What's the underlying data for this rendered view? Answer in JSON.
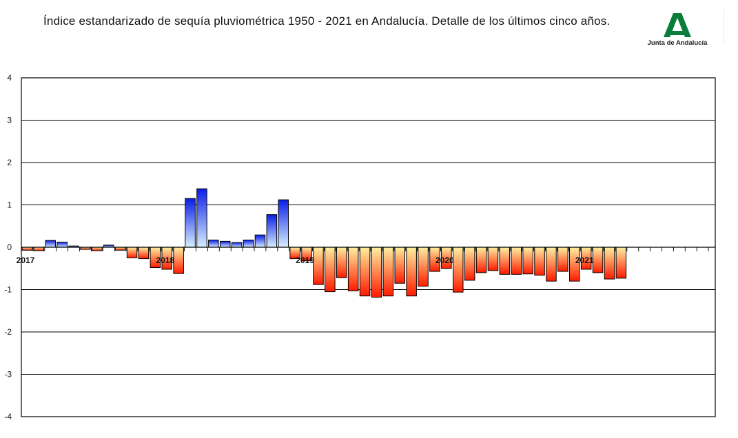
{
  "title": "Índice estandarizado de sequía pluviométrica 1950 - 2021 en Andalucía. Detalle de los últimos cinco años.",
  "logo": {
    "text": "Junta de Andalucía",
    "color": "#0a7d3b"
  },
  "colors": {
    "positive_top": "#0b1ee6",
    "positive_bottom": "#d7efff",
    "negative_top": "#fff0a0",
    "negative_bottom": "#ff1a00",
    "grid": "#000000"
  },
  "chart_data": {
    "type": "bar",
    "title": "Índice estandarizado de sequía pluviométrica 1950 - 2021 en Andalucía. Detalle de los últimos cinco años.",
    "xlabel": "",
    "ylabel": "",
    "ylim": [
      -4,
      4
    ],
    "yticks": [
      4,
      3,
      2,
      1,
      0,
      -1,
      -2,
      -3,
      -4
    ],
    "grid": true,
    "slots": 60,
    "year_labels": [
      {
        "label": "2017",
        "slot": 0
      },
      {
        "label": "2018",
        "slot": 12
      },
      {
        "label": "2019",
        "slot": 24
      },
      {
        "label": "2020",
        "slot": 36
      },
      {
        "label": "2021",
        "slot": 48
      }
    ],
    "values": [
      -0.07,
      -0.08,
      0.16,
      0.12,
      0.03,
      -0.05,
      -0.08,
      0.05,
      -0.07,
      -0.25,
      -0.27,
      -0.48,
      -0.52,
      -0.62,
      1.15,
      1.38,
      0.17,
      0.14,
      0.11,
      0.17,
      0.29,
      0.77,
      1.12,
      -0.27,
      -0.32,
      -0.88,
      -1.05,
      -0.72,
      -1.03,
      -1.15,
      -1.18,
      -1.15,
      -0.85,
      -1.15,
      -0.92,
      -0.57,
      -0.5,
      -1.06,
      -0.78,
      -0.6,
      -0.55,
      -0.64,
      -0.64,
      -0.63,
      -0.66,
      -0.8,
      -0.57,
      -0.8,
      -0.52,
      -0.6,
      -0.75,
      -0.73
    ]
  }
}
